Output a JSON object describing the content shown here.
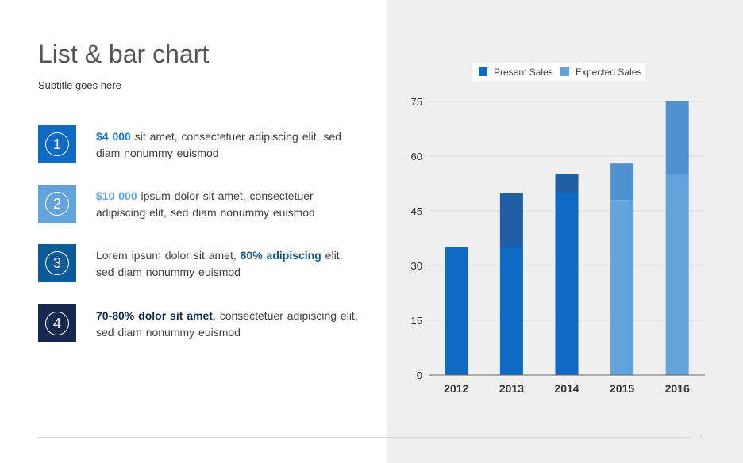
{
  "slide": {
    "title": "List & bar chart",
    "subtitle": "Subtitle goes here",
    "page_number": "4"
  },
  "list": [
    {
      "number": "1",
      "color": "#0f6ac4",
      "parts": [
        {
          "text": "$4 000",
          "bold": true,
          "color": "#1a73c8"
        },
        {
          "text": " sit amet, consectetuer adipiscing elit, sed diam nonummy  euismod",
          "bold": false
        }
      ]
    },
    {
      "number": "2",
      "color": "#62a3dc",
      "parts": [
        {
          "text": "$10 000",
          "bold": true,
          "color": "#62a3dc"
        },
        {
          "text": " ipsum dolor sit amet, consectetuer adipiscing elit, sed diam nonummy  euismod",
          "bold": false
        }
      ]
    },
    {
      "number": "3",
      "color": "#0d5a96",
      "parts": [
        {
          "text": "Lorem ipsum dolor sit amet, ",
          "bold": false
        },
        {
          "text": "80% adipiscing",
          "bold": true,
          "color": "#0d5a96"
        },
        {
          "text": " elit, sed diam nonummy  euismod",
          "bold": false
        }
      ]
    },
    {
      "number": "4",
      "color": "#15294f",
      "parts": [
        {
          "text": "70-80% dolor sit amet",
          "bold": true,
          "color": "#15294f"
        },
        {
          "text": ", consectetuer adipiscing elit, sed diam nonummy  euismod",
          "bold": false
        }
      ]
    }
  ],
  "chart_data": {
    "type": "bar",
    "stacked": true,
    "categories": [
      "2012",
      "2013",
      "2014",
      "2015",
      "2016"
    ],
    "series": [
      {
        "name": "Present Sales",
        "color": "#0f6ac4",
        "values": [
          35,
          50,
          55,
          58,
          75
        ]
      },
      {
        "name": "Expected Sales",
        "color": "#62a3dc",
        "values": [
          0,
          0,
          0,
          0,
          0
        ]
      }
    ],
    "segments": [
      {
        "category": "2012",
        "base": [
          0,
          35
        ],
        "top": null,
        "base_color": "#0f6ac4",
        "top_color": null
      },
      {
        "category": "2013",
        "base": [
          0,
          35
        ],
        "top": [
          35,
          50
        ],
        "base_color": "#0f6ac4",
        "top_color": "#205fa4"
      },
      {
        "category": "2014",
        "base": [
          0,
          50
        ],
        "top": [
          50,
          55
        ],
        "base_color": "#0f6ac4",
        "top_color": "#205fa4"
      },
      {
        "category": "2015",
        "base": [
          0,
          48
        ],
        "top": [
          48,
          58
        ],
        "base_color": "#62a3dc",
        "top_color": "#4f92cf"
      },
      {
        "category": "2016",
        "base": [
          0,
          55
        ],
        "top": [
          55,
          75
        ],
        "base_color": "#62a3dc",
        "top_color": "#4f92cf"
      }
    ],
    "legend": [
      {
        "name": "Present Sales",
        "color": "#0f6ac4"
      },
      {
        "name": "Expected Sales",
        "color": "#62a3dc"
      }
    ],
    "yticks": [
      "0",
      "15",
      "30",
      "45",
      "60",
      "75"
    ],
    "ylim": [
      0,
      75
    ],
    "grid": true,
    "legend_position": "top"
  }
}
